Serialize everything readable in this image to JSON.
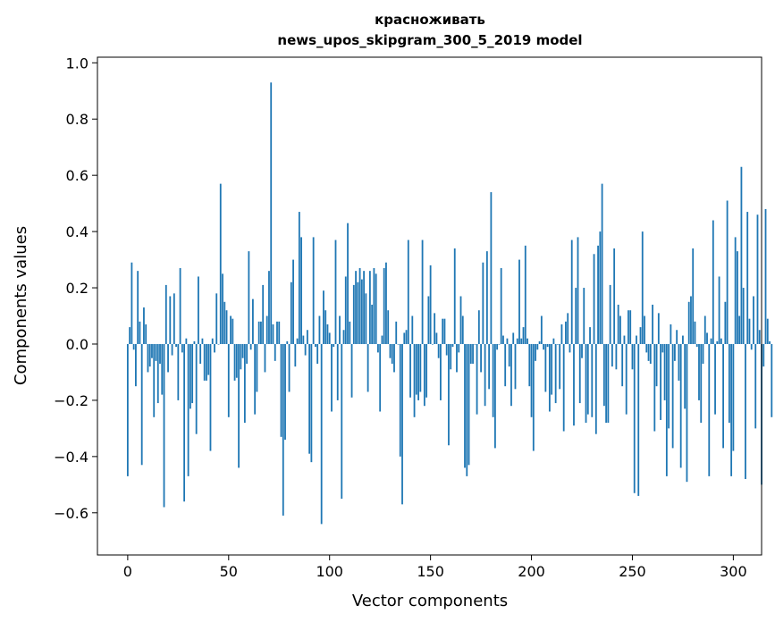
{
  "chart_data": {
    "type": "bar",
    "title": "красноживать",
    "subtitle": "news_upos_skipgram_300_5_2019 model",
    "xlabel": "Vector components",
    "ylabel": "Components values",
    "xlim": [
      -15,
      314
    ],
    "ylim": [
      -0.75,
      1.02
    ],
    "xticks": [
      0,
      50,
      100,
      150,
      200,
      250,
      300
    ],
    "yticks": [
      -0.6,
      -0.4,
      -0.2,
      0.0,
      0.2,
      0.4,
      0.6,
      0.8,
      1.0
    ],
    "ytick_labels": [
      "−0.6",
      "−0.4",
      "−0.2",
      "0.0",
      "0.2",
      "0.4",
      "0.6",
      "0.8",
      "1.0"
    ],
    "bar_color": "#1f77b4",
    "grid": false,
    "values": [
      -0.47,
      0.06,
      0.29,
      -0.02,
      -0.15,
      0.26,
      0.08,
      -0.43,
      0.13,
      0.07,
      -0.1,
      -0.08,
      -0.05,
      -0.26,
      -0.06,
      -0.21,
      -0.07,
      -0.18,
      -0.58,
      0.21,
      -0.1,
      0.17,
      -0.04,
      0.18,
      -0.01,
      -0.2,
      0.27,
      -0.03,
      -0.56,
      0.02,
      -0.47,
      -0.23,
      -0.21,
      0.01,
      -0.32,
      0.24,
      -0.07,
      0.02,
      -0.13,
      -0.13,
      -0.11,
      -0.38,
      0.02,
      -0.03,
      0.18,
      0.0,
      0.57,
      0.25,
      0.15,
      0.12,
      -0.26,
      0.1,
      0.09,
      -0.13,
      -0.12,
      -0.44,
      -0.09,
      -0.05,
      -0.28,
      -0.07,
      0.33,
      -0.02,
      0.16,
      -0.25,
      -0.17,
      0.08,
      0.08,
      0.21,
      -0.1,
      0.1,
      0.26,
      0.93,
      0.07,
      -0.06,
      0.08,
      0.08,
      -0.33,
      -0.61,
      -0.34,
      0.01,
      -0.17,
      0.22,
      0.3,
      -0.08,
      0.02,
      0.47,
      0.38,
      0.03,
      -0.04,
      0.05,
      -0.39,
      -0.42,
      0.38,
      -0.01,
      -0.07,
      0.1,
      -0.64,
      0.19,
      0.12,
      0.07,
      0.04,
      -0.24,
      -0.01,
      0.37,
      -0.2,
      0.1,
      -0.55,
      0.05,
      0.24,
      0.43,
      0.08,
      -0.19,
      0.21,
      0.26,
      0.22,
      0.27,
      0.23,
      0.26,
      0.18,
      -0.17,
      0.26,
      0.14,
      0.27,
      0.25,
      -0.03,
      -0.24,
      0.03,
      0.27,
      0.29,
      0.12,
      -0.05,
      -0.07,
      -0.1,
      0.08,
      0.0,
      -0.4,
      -0.57,
      0.04,
      0.05,
      0.37,
      -0.19,
      0.1,
      -0.26,
      -0.18,
      -0.2,
      -0.17,
      0.37,
      -0.22,
      -0.19,
      0.17,
      0.28,
      0.0,
      0.11,
      0.04,
      -0.05,
      -0.2,
      0.09,
      0.09,
      -0.04,
      -0.36,
      -0.09,
      -0.01,
      0.34,
      -0.1,
      -0.03,
      0.17,
      0.1,
      -0.44,
      -0.47,
      -0.43,
      -0.07,
      -0.07,
      0.0,
      -0.25,
      0.12,
      -0.1,
      0.29,
      -0.22,
      0.33,
      -0.16,
      0.54,
      -0.26,
      -0.37,
      -0.02,
      0.0,
      0.27,
      0.03,
      -0.15,
      0.02,
      -0.08,
      -0.22,
      0.04,
      -0.16,
      0.02,
      0.3,
      0.02,
      0.06,
      0.35,
      0.02,
      -0.15,
      -0.26,
      -0.38,
      -0.06,
      -0.02,
      0.01,
      0.1,
      -0.02,
      -0.17,
      -0.01,
      -0.24,
      -0.18,
      0.02,
      -0.21,
      0.0,
      -0.16,
      0.07,
      -0.31,
      0.08,
      0.11,
      -0.03,
      0.37,
      -0.29,
      0.2,
      0.38,
      -0.21,
      -0.05,
      0.2,
      -0.28,
      -0.25,
      0.06,
      -0.26,
      0.32,
      -0.32,
      0.35,
      0.4,
      0.57,
      -0.22,
      -0.28,
      -0.28,
      0.21,
      -0.08,
      0.34,
      -0.09,
      0.14,
      0.1,
      -0.15,
      0.03,
      -0.25,
      0.12,
      0.12,
      -0.09,
      -0.53,
      0.03,
      -0.54,
      0.06,
      0.4,
      0.1,
      -0.03,
      -0.06,
      -0.07,
      0.14,
      -0.31,
      -0.15,
      0.11,
      -0.27,
      -0.03,
      -0.2,
      -0.47,
      -0.3,
      0.07,
      -0.37,
      -0.06,
      0.05,
      -0.13,
      -0.44,
      0.03,
      -0.23,
      -0.49,
      0.15,
      0.17,
      0.34,
      0.08,
      -0.01,
      -0.2,
      -0.28,
      -0.07,
      0.1,
      0.04,
      -0.47,
      0.02,
      0.44,
      -0.25,
      0.01,
      0.24,
      0.02,
      -0.37,
      0.15,
      0.51,
      -0.28,
      -0.47,
      -0.38,
      0.38,
      0.33,
      0.1,
      0.63,
      0.2,
      -0.48,
      0.47,
      0.09,
      -0.02,
      0.17,
      -0.3,
      0.46,
      0.05,
      -0.5,
      -0.08,
      0.48,
      0.09,
      0.01,
      -0.26
    ]
  }
}
